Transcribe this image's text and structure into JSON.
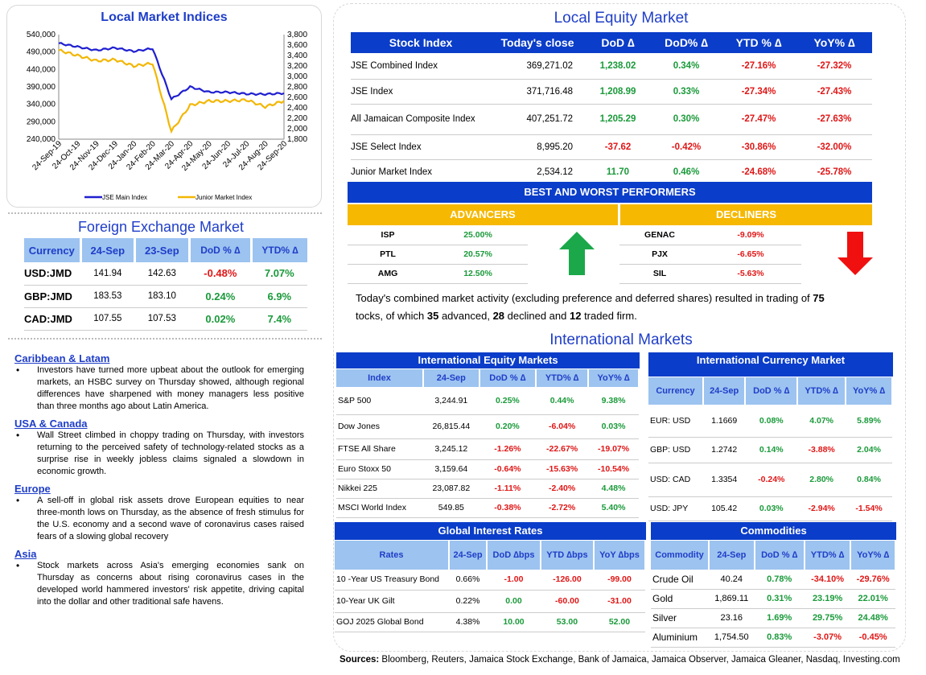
{
  "chart": {
    "title": "Local Market Indices",
    "y_left_ticks": [
      "540,000",
      "490,000",
      "440,000",
      "390,000",
      "340,000",
      "290,000",
      "240,000"
    ],
    "y_right_ticks": [
      "3,800",
      "3,600",
      "3,400",
      "3,200",
      "3,000",
      "2,800",
      "2,600",
      "2,400",
      "2,200",
      "2,000",
      "1,800"
    ],
    "x_ticks": [
      "24-Sep-19",
      "24-Oct-19",
      "24-Nov-19",
      "24-Dec-19",
      "24-Jan-20",
      "24-Feb-20",
      "24-Mar-20",
      "24-Apr-20",
      "24-May-20",
      "24-Jun-20",
      "24-Jul-20",
      "24-Aug-20",
      "24-Sep-20"
    ],
    "legend": [
      "JSE Main Index",
      "Junior Market Index"
    ],
    "colors": {
      "main": "#1f1fd0",
      "junior": "#f2b705"
    }
  },
  "chart_data": {
    "type": "line",
    "title": "Local Market Indices",
    "x": [
      "24-Sep-19",
      "24-Oct-19",
      "24-Nov-19",
      "24-Dec-19",
      "24-Jan-20",
      "24-Feb-20",
      "24-Mar-20",
      "24-Apr-20",
      "24-May-20",
      "24-Jun-20",
      "24-Jul-20",
      "24-Aug-20",
      "24-Sep-20"
    ],
    "series": [
      {
        "name": "JSE Main Index",
        "axis": "left",
        "values": [
          515000,
          505000,
          495000,
          502000,
          492000,
          500000,
          355000,
          390000,
          375000,
          375000,
          370000,
          369000,
          371716
        ]
      },
      {
        "name": "Junior Market Index",
        "axis": "right",
        "values": [
          3500,
          3400,
          3300,
          3320,
          3200,
          3250,
          1950,
          2450,
          2530,
          2530,
          2550,
          2420,
          2534
        ]
      }
    ],
    "ylim_left": [
      240000,
      540000
    ],
    "ylim_right": [
      1800,
      3800
    ]
  },
  "fx": {
    "title": "Foreign Exchange Market",
    "headers": [
      "Currency",
      "24-Sep",
      "23-Sep",
      "DoD % ∆",
      "YTD% ∆"
    ],
    "rows": [
      [
        "USD:JMD",
        "141.94",
        "142.63",
        "-0.48%",
        "7.07%"
      ],
      [
        "GBP:JMD",
        "183.53",
        "183.10",
        "0.24%",
        "6.9%"
      ],
      [
        "CAD:JMD",
        "107.55",
        "107.53",
        "0.02%",
        "7.4%"
      ]
    ]
  },
  "news": [
    {
      "heading": "Caribbean & Latam",
      "text": "Investors have turned more upbeat about the outlook for emerging markets, an HSBC survey on Thursday showed, although regional differences have sharpened with money managers less positive than three months ago about Latin America."
    },
    {
      "heading": "USA & Canada",
      "text": "Wall Street climbed in choppy trading on Thursday, with investors returning to the perceived safety of technology-related stocks as a surprise rise in weekly jobless claims signaled a slowdown in economic growth."
    },
    {
      "heading": "Europe",
      "text": "A sell-off in global risk assets drove European equities to near three-month lows on Thursday, as the absence of fresh stimulus for the U.S. economy and a second wave of coronavirus cases raised fears of a slowing global recovery"
    },
    {
      "heading": "Asia",
      "text": "Stock markets across Asia's emerging economies sank on Thursday as concerns about rising coronavirus cases in the developed world hammered investors' risk appetite, driving capital into the dollar and other traditional safe havens."
    }
  ],
  "equity": {
    "title": "Local Equity Market",
    "headers": [
      "Stock Index",
      "Today's close",
      "DoD  ∆",
      "DoD% ∆",
      "YTD % ∆",
      "YoY% ∆"
    ],
    "rows": [
      [
        "JSE Combined Index",
        "369,271.02",
        "1,238.02",
        "0.34%",
        "-27.16%",
        "-27.32%"
      ],
      [
        "JSE Index",
        "371,716.48",
        "1,208.99",
        "0.33%",
        "-27.34%",
        "-27.43%"
      ],
      [
        "All Jamaican Composite Index",
        "407,251.72",
        "1,205.29",
        "0.30%",
        "-27.47%",
        "-27.63%"
      ],
      [
        "JSE Select Index",
        "8,995.20",
        "-37.62",
        "-0.42%",
        "-30.86%",
        "-32.00%"
      ],
      [
        "Junior Market Index",
        "2,534.12",
        "11.70",
        "0.46%",
        "-24.68%",
        "-25.78%"
      ]
    ]
  },
  "performers": {
    "title": "BEST AND WORST PERFORMERS",
    "adv_label": "ADVANCERS",
    "dec_label": "DECLINERS",
    "advancers": [
      [
        "ISP",
        "25.00%"
      ],
      [
        "PTL",
        "20.57%"
      ],
      [
        "AMG",
        "12.50%"
      ]
    ],
    "decliners": [
      [
        "GENAC",
        "-9.09%"
      ],
      [
        "PJX",
        "-6.65%"
      ],
      [
        "SIL",
        "-5.63%"
      ]
    ],
    "summary_a": "Today's combined market activity (excluding preference and deferred shares) resulted in trading of ",
    "total": "75",
    "summary_b": "tocks, of which ",
    "advanced": "35",
    "summary_c": " advanced, ",
    "declined": "28",
    "summary_d": " declined and ",
    "firm": "12",
    "summary_e": " traded firm."
  },
  "intl": {
    "title": "International Markets",
    "equity": {
      "title": "International Equity Markets",
      "headers": [
        "Index",
        "24-Sep",
        "DoD % ∆",
        "YTD% ∆",
        "YoY% ∆"
      ],
      "rows": [
        [
          "S&P 500",
          "3,244.91",
          "0.25%",
          "0.44%",
          "9.38%"
        ],
        [
          "Dow Jones",
          "26,815.44",
          "0.20%",
          "-6.04%",
          "0.03%"
        ],
        [
          "FTSE All Share",
          "3,245.12",
          "-1.26%",
          "-22.67%",
          "-19.07%"
        ],
        [
          "Euro Stoxx 50",
          "3,159.64",
          "-0.64%",
          "-15.63%",
          "-10.54%"
        ],
        [
          "Nikkei 225",
          "23,087.82",
          "-1.11%",
          "-2.40%",
          "4.48%"
        ],
        [
          "MSCI World Index",
          "549.85",
          "-0.38%",
          "-2.72%",
          "5.40%"
        ]
      ]
    },
    "currency": {
      "title": "International Currency Market",
      "headers": [
        "Currency",
        "24-Sep",
        "DoD % ∆",
        "YTD% ∆",
        "YoY% ∆"
      ],
      "rows": [
        [
          "EUR: USD",
          "1.1669",
          "0.08%",
          "4.07%",
          "5.89%"
        ],
        [
          "GBP: USD",
          "1.2742",
          "0.14%",
          "-3.88%",
          "2.04%"
        ],
        [
          "USD: CAD",
          "1.3354",
          "-0.24%",
          "2.80%",
          "0.84%"
        ],
        [
          "USD: JPY",
          "105.42",
          "0.03%",
          "-2.94%",
          "-1.54%"
        ]
      ]
    },
    "rates": {
      "title": "Global Interest Rates",
      "headers": [
        "Rates",
        "24-Sep",
        "DoD ∆bps",
        "YTD ∆bps",
        "YoY ∆bps"
      ],
      "rows": [
        [
          "10 -Year US Treasury Bond",
          "0.66%",
          "-1.00",
          "-126.00",
          "-99.00"
        ],
        [
          "10-Year UK Gilt",
          "0.22%",
          "0.00",
          "-60.00",
          "-31.00"
        ],
        [
          "GOJ 2025 Global Bond",
          "4.38%",
          "10.00",
          "53.00",
          "52.00"
        ]
      ]
    },
    "commodities": {
      "title": "Commodities",
      "headers": [
        "Commodity",
        "24-Sep",
        "DoD % ∆",
        "YTD% ∆",
        "YoY% ∆"
      ],
      "rows": [
        [
          "Crude Oil",
          "40.24",
          "0.78%",
          "-34.10%",
          "-29.76%"
        ],
        [
          "Gold",
          "1,869.11",
          "0.31%",
          "23.19%",
          "22.01%"
        ],
        [
          "Silver",
          "23.16",
          "1.69%",
          "29.75%",
          "24.48%"
        ],
        [
          "Aluminium",
          "1,754.50",
          "0.83%",
          "-3.07%",
          "-0.45%"
        ]
      ]
    }
  },
  "sources": {
    "label": "Sources:",
    "text": " Bloomberg, Reuters, Jamaica Stock Exchange, Bank of Jamaica, Jamaica Observer, Jamaica Gleaner, Nasdaq, Investing.com"
  }
}
